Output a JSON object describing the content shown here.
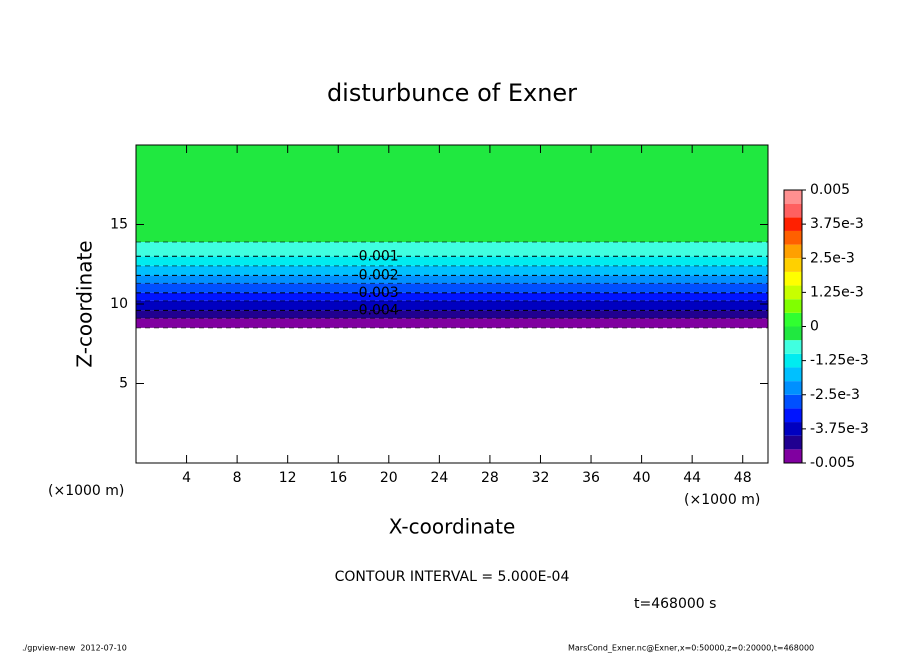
{
  "chart_data": {
    "type": "contour",
    "title": "disturbunce of Exner",
    "xlabel": "X-coordinate",
    "ylabel": "Z-coordinate",
    "x_unit": "(×1000 m)",
    "xlim": [
      0,
      50
    ],
    "xticks": [
      4,
      8,
      12,
      16,
      20,
      24,
      28,
      32,
      36,
      40,
      44,
      48
    ],
    "ylim": [
      0,
      20
    ],
    "yticks": [
      5,
      10,
      15
    ],
    "levels": [
      -0.005,
      -0.0045,
      -0.004,
      -0.0035,
      -0.003,
      -0.0025,
      -0.002,
      -0.0015,
      -0.001,
      -0.0005,
      0,
      0.0005,
      0.001,
      0.0015,
      0.002,
      0.0025,
      0.003,
      0.0035,
      0.004,
      0.0045,
      0.005
    ],
    "colors": [
      "#8000a0",
      "#200090",
      "#0000c0",
      "#0014ff",
      "#0050ff",
      "#0090ff",
      "#00c0ff",
      "#00ecf0",
      "#40ffe0",
      "#20e840",
      "#30ff30",
      "#80ff00",
      "#c8ff00",
      "#ffff00",
      "#ffd000",
      "#ffa000",
      "#ff6000",
      "#ff2000",
      "#ff6060",
      "#ff9090"
    ],
    "colorbar_ticks": [
      {
        "value": 0.005,
        "label": "0.005"
      },
      {
        "value": 0.00375,
        "label": "3.75e-3"
      },
      {
        "value": 0.0025,
        "label": "2.5e-3"
      },
      {
        "value": 0.00125,
        "label": "1.25e-3"
      },
      0,
      {
        "value": -0.00125,
        "label": "-1.25e-3"
      },
      {
        "value": -0.0025,
        "label": "-2.5e-3"
      },
      {
        "value": -0.00375,
        "label": "-3.75e-3"
      },
      -0.005
    ],
    "contours": [
      {
        "level": -0.005,
        "z": 8.5,
        "labeled": false
      },
      {
        "level": -0.0045,
        "z": 9.1,
        "labeled": false
      },
      {
        "level": -0.004,
        "z": 9.6,
        "labeled": true
      },
      {
        "level": -0.0035,
        "z": 10.2,
        "labeled": false
      },
      {
        "level": -0.003,
        "z": 10.7,
        "labeled": true
      },
      {
        "level": -0.0025,
        "z": 11.3,
        "labeled": false
      },
      {
        "level": -0.002,
        "z": 11.8,
        "labeled": true
      },
      {
        "level": -0.0015,
        "z": 12.4,
        "labeled": false
      },
      {
        "level": -0.001,
        "z": 13.0,
        "labeled": true
      },
      {
        "level": -0.0005,
        "z": 13.9,
        "labeled": false
      }
    ],
    "contour_interval": "CONTOUR INTERVAL = 5.000E-04",
    "time_label": "t=468000 s",
    "footer_left": "./gpview-new  2012-07-10",
    "footer_right": "MarsCond_Exner.nc@Exner,x=0:50000,z=0:20000,t=468000"
  }
}
